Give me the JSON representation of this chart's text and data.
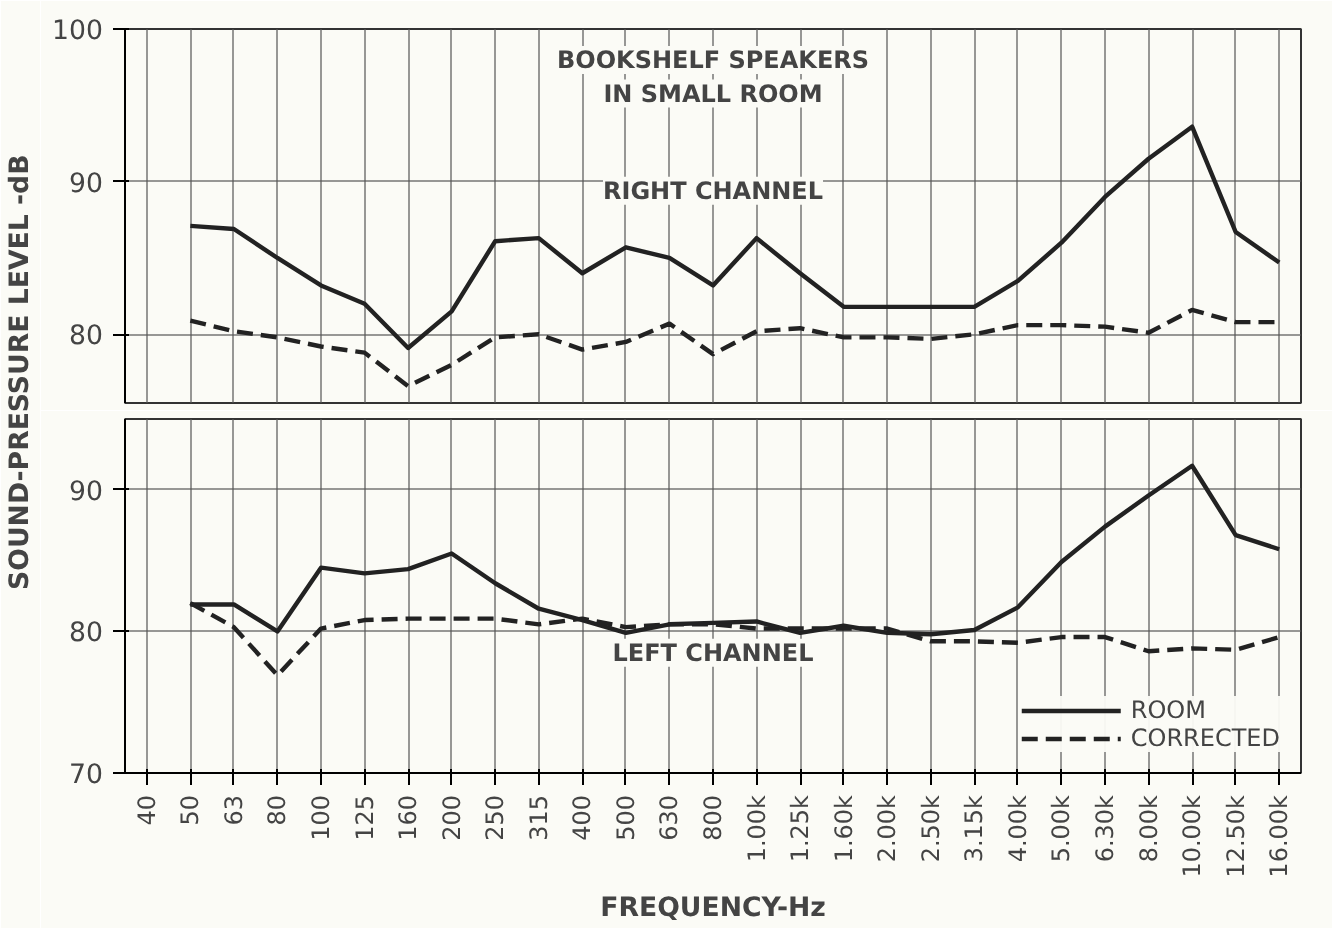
{
  "chart_data": [
    {
      "type": "line",
      "title": "BOOKSHELF SPEAKERS\nIN SMALL ROOM",
      "ylabel": "SOUND-PRESSURE LEVEL -dB",
      "series": [
        {
          "color": "#222222",
          "line_style": "solid",
          "values": [
            null,
            87.1,
            86.9,
            85.0,
            83.2,
            82.0,
            79.1,
            81.5,
            86.1,
            86.3,
            84.0,
            85.7,
            85.0,
            83.2,
            86.3,
            84.0,
            81.8,
            81.8,
            81.8,
            81.8,
            83.5,
            86.0,
            89.0,
            91.5,
            93.6,
            86.7,
            84.7
          ]
        },
        {
          "color": "#222222",
          "line_style": "dashed",
          "values": [
            null,
            80.9,
            80.2,
            79.8,
            79.2,
            78.8,
            76.6,
            78.0,
            79.8,
            80.0,
            79.0,
            79.5,
            80.7,
            78.7,
            80.2,
            80.4,
            79.8,
            79.8,
            79.7,
            80.0,
            80.6,
            80.6,
            80.5,
            80.1,
            81.6,
            80.8,
            80.8
          ]
        }
      ],
      "annotations": [
        "RIGHT CHANNEL"
      ],
      "ylim": [
        75.5,
        100
      ],
      "yticks": [
        80,
        90,
        100
      ],
      "grid": true,
      "tick_labels": "y",
      "legend": false
    },
    {
      "type": "line",
      "xlabel": "FREQUENCY-Hz",
      "categories": [
        "40",
        "50",
        "63",
        "80",
        "100",
        "125",
        "160",
        "200",
        "250",
        "315",
        "400",
        "500",
        "630",
        "800",
        "1.00k",
        "1.25k",
        "1.60k",
        "2.00k",
        "2.50k",
        "3.15k",
        "4.00k",
        "5.00k",
        "6.30k",
        "8.00k",
        "10.00k",
        "12.50k",
        "16.00k"
      ],
      "series": [
        {
          "name": "ROOM",
          "color": "#222222",
          "line_style": "solid",
          "values": [
            null,
            81.9,
            81.9,
            80.0,
            84.5,
            84.1,
            84.4,
            85.5,
            83.4,
            81.6,
            80.8,
            79.9,
            80.5,
            80.6,
            80.7,
            79.9,
            80.4,
            79.9,
            79.8,
            80.1,
            81.7,
            84.9,
            87.4,
            89.6,
            91.7,
            86.8,
            85.8
          ]
        },
        {
          "name": "CORRECTED",
          "color": "#222222",
          "line_style": "dashed",
          "values": [
            null,
            82.0,
            80.3,
            76.9,
            80.2,
            80.8,
            80.9,
            80.9,
            80.9,
            80.5,
            80.9,
            80.3,
            80.5,
            80.5,
            80.2,
            80.2,
            80.2,
            80.2,
            79.3,
            79.3,
            79.2,
            79.6,
            79.6,
            78.6,
            78.8,
            78.7,
            79.6
          ]
        }
      ],
      "annotations": [
        "LEFT CHANNEL"
      ],
      "ylim": [
        70,
        95
      ],
      "yticks": [
        70,
        80,
        90
      ],
      "grid": true,
      "legend": "bottom right"
    }
  ]
}
